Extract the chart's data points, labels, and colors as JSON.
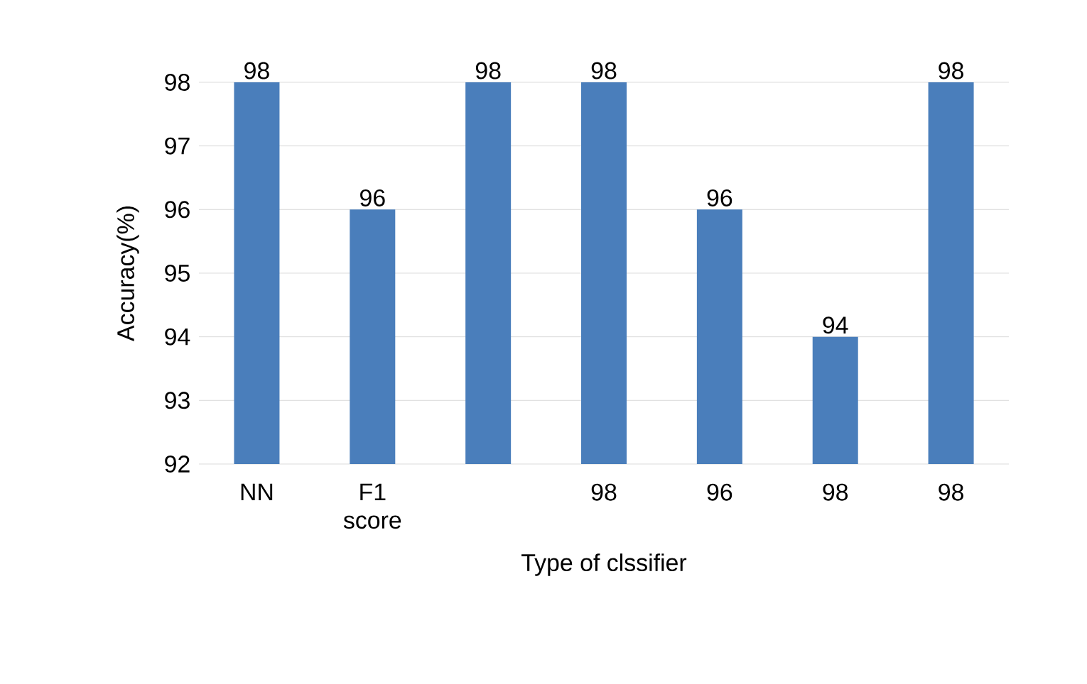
{
  "chart_data": {
    "type": "bar",
    "xlabel": "Type of clssifier",
    "ylabel": "Accuracy(%)",
    "categories": [
      "NN",
      "F1 score",
      null,
      "98",
      "96",
      "98",
      "98"
    ],
    "values": [
      98,
      96,
      98,
      98,
      96,
      94,
      98
    ],
    "color": "#4a7ebb",
    "ylim": [
      92,
      98
    ],
    "yticks": [
      92,
      93,
      94,
      95,
      96,
      97,
      98
    ],
    "grid": "y",
    "data_labels": true
  }
}
